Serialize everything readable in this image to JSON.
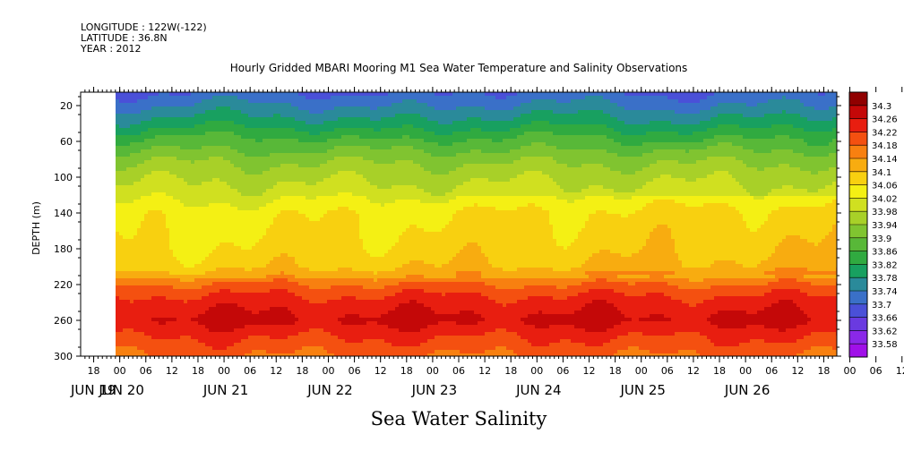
{
  "header": {
    "longitude": "LONGITUDE : 122W(-122)",
    "latitude": "LATITUDE : 36.8N",
    "year": "YEAR : 2012"
  },
  "chart_data": {
    "type": "heatmap",
    "title": "Hourly Gridded MBARI Mooring M1 Sea Water Temperature and Salinity Observations",
    "xlabel": "Sea Water Salinity",
    "ylabel": "DEPTH (m)",
    "y_axis": {
      "ticks": [
        20,
        60,
        100,
        140,
        180,
        220,
        260,
        300
      ],
      "range": [
        300,
        5
      ],
      "inverted": true
    },
    "x_axis": {
      "start": "JUN 19 15:00",
      "end": "JUN 26 21:00",
      "data_start": "JUN 20 00:00",
      "hour_tick_labels": [
        "18",
        "00",
        "06",
        "12",
        "18",
        "00",
        "06",
        "12",
        "18",
        "00",
        "06",
        "12",
        "18",
        "00",
        "06",
        "12",
        "18",
        "00",
        "06",
        "12",
        "18",
        "00",
        "06",
        "12",
        "18",
        "00",
        "06",
        "12",
        "18",
        "00",
        "06",
        "12"
      ],
      "date_labels": [
        "JUN 19",
        "JUN 20",
        "JUN 21",
        "JUN 22",
        "JUN 23",
        "JUN 24",
        "JUN 25",
        "JUN 26"
      ]
    },
    "colorbar": {
      "levels": [
        33.58,
        33.62,
        33.66,
        33.7,
        33.74,
        33.78,
        33.82,
        33.86,
        33.9,
        33.94,
        33.98,
        34.02,
        34.06,
        34.1,
        34.14,
        34.18,
        34.22,
        34.26,
        34.3
      ],
      "colors": [
        "#a010e8",
        "#8a28e8",
        "#6a3ae0",
        "#4a50d8",
        "#3a70c8",
        "#2a8a9a",
        "#18a060",
        "#30aa40",
        "#58b838",
        "#80c430",
        "#a8d028",
        "#d0e020",
        "#f4f014",
        "#f8d010",
        "#f8ac10",
        "#f88010",
        "#f45010",
        "#e81e10",
        "#c40808",
        "#900000"
      ]
    },
    "profile_depths": [
      5,
      20,
      40,
      60,
      80,
      100,
      120,
      140,
      160,
      180,
      200,
      210,
      215,
      225,
      240,
      260,
      280,
      300
    ],
    "profile_values": [
      33.7,
      33.74,
      33.8,
      33.87,
      33.93,
      33.97,
      34.0,
      34.04,
      34.05,
      34.06,
      34.08,
      34.12,
      34.16,
      34.2,
      34.24,
      34.27,
      34.22,
      34.18
    ]
  }
}
